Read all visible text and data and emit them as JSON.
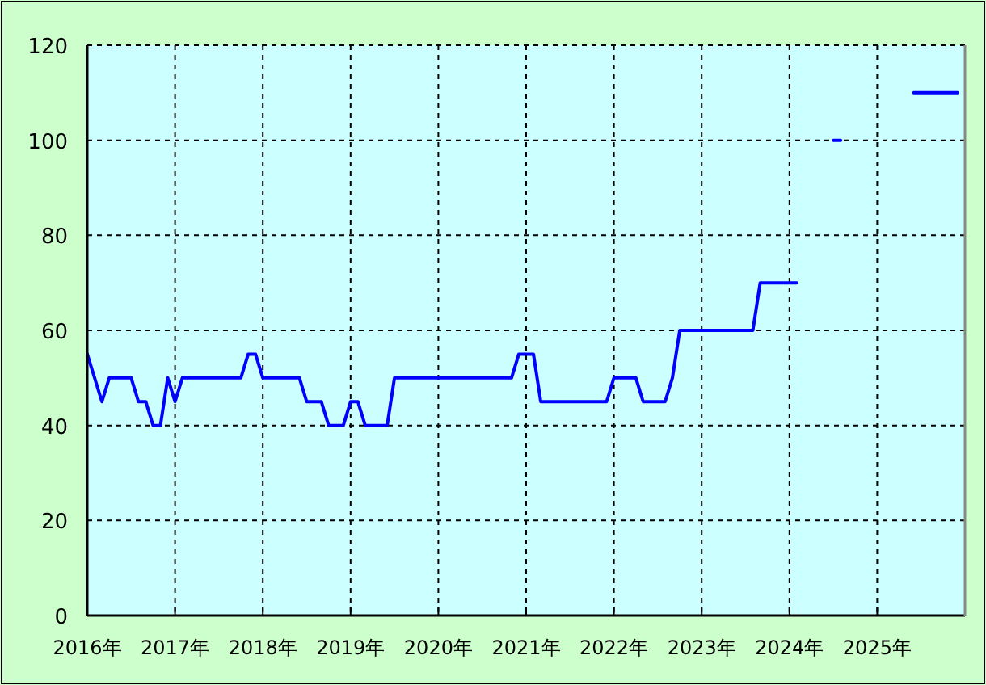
{
  "chart_data": {
    "type": "line",
    "series": [
      {
        "color": "#0000ff",
        "x": [
          "2016-01",
          "2016-03",
          "2016-04",
          "2016-07",
          "2016-08",
          "2016-09",
          "2016-10",
          "2016-11",
          "2016-12",
          "2017-01",
          "2017-02",
          "2017-10",
          "2017-11",
          "2017-12",
          "2018-01",
          "2018-06",
          "2018-07",
          "2018-09",
          "2018-10",
          "2018-12",
          "2019-01",
          "2019-02",
          "2019-03",
          "2019-06",
          "2019-07",
          "2020-11",
          "2020-12",
          "2021-02",
          "2021-03",
          "2021-12",
          "2022-01",
          "2022-04",
          "2022-05",
          "2022-08",
          "2022-09",
          "2022-10",
          "2023-08",
          "2023-09",
          "2024-02"
        ],
        "values": [
          55,
          45,
          50,
          50,
          45,
          45,
          40,
          40,
          50,
          45,
          50,
          50,
          55,
          55,
          50,
          50,
          45,
          45,
          40,
          40,
          45,
          45,
          40,
          40,
          50,
          50,
          55,
          55,
          45,
          45,
          50,
          50,
          45,
          45,
          50,
          60,
          60,
          70,
          70
        ]
      },
      {
        "color": "#0000ff",
        "x": [
          "2024-07",
          "2024-08"
        ],
        "values": [
          100,
          100
        ]
      },
      {
        "color": "#0000ff",
        "x": [
          "2025-06",
          "2025-12"
        ],
        "values": [
          110,
          110
        ]
      }
    ],
    "xlim": [
      "2016-01",
      "2026-01"
    ],
    "xticks": [
      {
        "value": "2016-01",
        "label": "2016年"
      },
      {
        "value": "2017-01",
        "label": "2017年"
      },
      {
        "value": "2018-01",
        "label": "2018年"
      },
      {
        "value": "2019-01",
        "label": "2019年"
      },
      {
        "value": "2020-01",
        "label": "2020年"
      },
      {
        "value": "2021-01",
        "label": "2021年"
      },
      {
        "value": "2022-01",
        "label": "2022年"
      },
      {
        "value": "2023-01",
        "label": "2023年"
      },
      {
        "value": "2024-01",
        "label": "2024年"
      },
      {
        "value": "2025-01",
        "label": "2025年"
      }
    ],
    "ylim": [
      0,
      120
    ],
    "yticks": [
      0,
      20,
      40,
      60,
      80,
      100,
      120
    ],
    "grid": true
  }
}
